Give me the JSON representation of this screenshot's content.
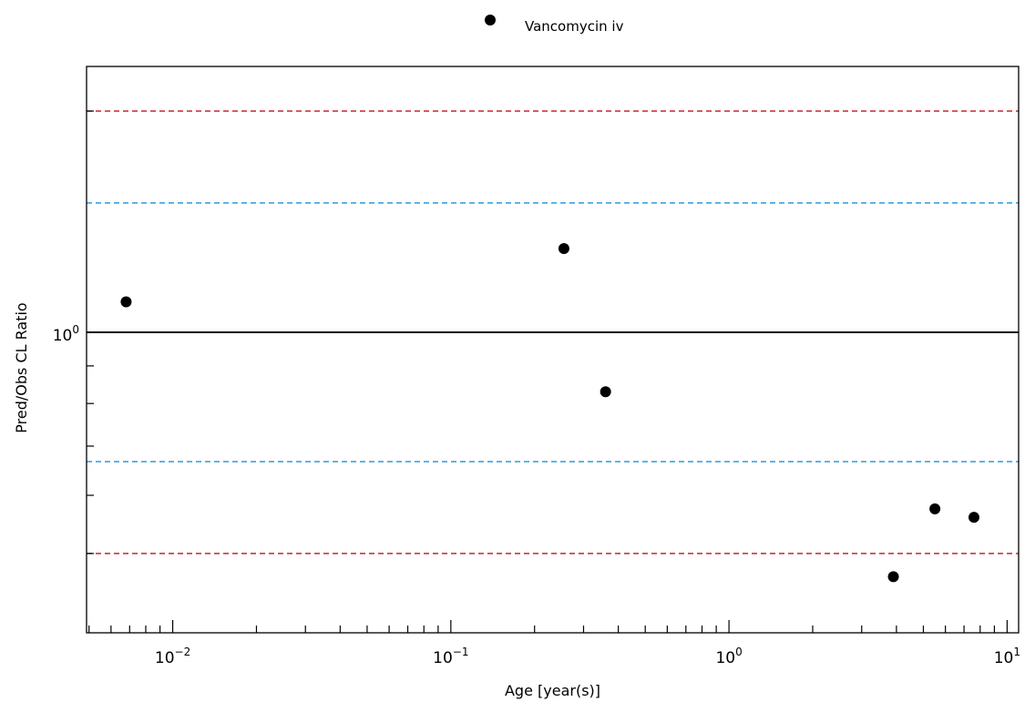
{
  "chart_data": {
    "type": "scatter",
    "xlabel": "Age [year(s)]",
    "ylabel": "Pred/Obs CL Ratio",
    "x_scale": "log",
    "y_scale": "log",
    "xlim": [
      0.0049,
      11.0
    ],
    "ylim": [
      0.39,
      2.3
    ],
    "x_tick_labels": [
      {
        "value": 0.01,
        "base": "10",
        "exp": "−2"
      },
      {
        "value": 0.1,
        "base": "10",
        "exp": "−1"
      },
      {
        "value": 1,
        "base": "10",
        "exp": "0"
      },
      {
        "value": 10,
        "base": "10",
        "exp": "1"
      }
    ],
    "y_tick_labels": [
      {
        "value": 1,
        "base": "10",
        "exp": "0"
      }
    ],
    "y_minor_ticks": [
      0.5,
      0.6,
      0.7,
      0.8,
      0.9,
      2
    ],
    "reference_lines": [
      {
        "y": 1,
        "color": "#000000",
        "style": "solid"
      },
      {
        "y": 1.5,
        "color": "#2e9bdc",
        "style": "dashed"
      },
      {
        "y": 0.6667,
        "color": "#2e9bdc",
        "style": "dashed"
      },
      {
        "y": 2,
        "color": "#c8262c",
        "style": "dashed"
      },
      {
        "y": 0.5,
        "color": "#c8262c",
        "style": "dashed"
      }
    ],
    "legend_position": "top-center",
    "series": [
      {
        "name": "Vancomycin iv",
        "color": "#000000",
        "marker": "circle",
        "x": [
          0.0068,
          0.255,
          0.36,
          3.9,
          5.5,
          7.6
        ],
        "y": [
          1.1,
          1.3,
          0.83,
          0.465,
          0.575,
          0.56
        ]
      }
    ]
  }
}
